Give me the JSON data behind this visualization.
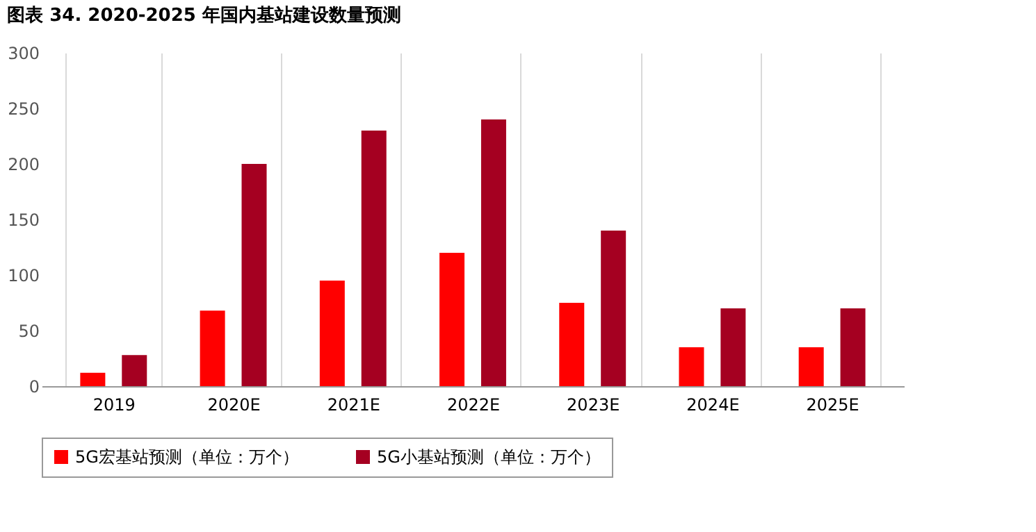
{
  "chart_data": {
    "type": "bar",
    "title": "图表 34. 2020-2025 年国内基站建设数量预测",
    "categories": [
      "2019",
      "2020E",
      "2021E",
      "2022E",
      "2023E",
      "2024E",
      "2025E"
    ],
    "series": [
      {
        "name": "5G宏基站预测（单位：万个）",
        "color": "#ff0000",
        "values": [
          12,
          68,
          95,
          120,
          75,
          35,
          35
        ]
      },
      {
        "name": "5G小基站预测（单位：万个）",
        "color": "#a50021",
        "values": [
          28,
          200,
          230,
          240,
          140,
          70,
          70
        ]
      }
    ],
    "ylim": [
      0,
      300
    ],
    "yticks": [
      0,
      50,
      100,
      150,
      200,
      250,
      300
    ],
    "grid": "x",
    "legend": "bottom"
  }
}
